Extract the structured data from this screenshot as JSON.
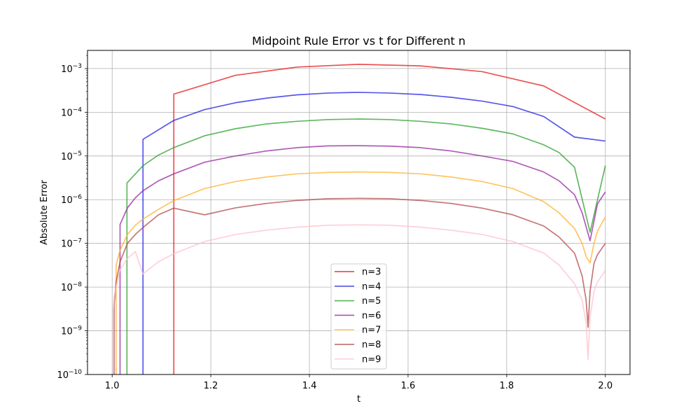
{
  "chart_data": {
    "type": "line",
    "title": "Midpoint Rule Error vs t for Different n",
    "xlabel": "t",
    "ylabel": "Absolute Error",
    "yscale": "log",
    "xlim": [
      0.95,
      2.05
    ],
    "ylim": [
      1e-10,
      0.0026
    ],
    "grid": true,
    "legend_location": "lower-center",
    "x_ticks": [
      {
        "value": 1.0,
        "label": "1.0"
      },
      {
        "value": 1.2,
        "label": "1.2"
      },
      {
        "value": 1.4,
        "label": "1.4"
      },
      {
        "value": 1.6,
        "label": "1.6"
      },
      {
        "value": 1.8,
        "label": "1.8"
      },
      {
        "value": 2.0,
        "label": "2.0"
      }
    ],
    "y_ticks": [
      {
        "value": 1e-10,
        "base": "10",
        "exp": "−10"
      },
      {
        "value": 1e-09,
        "base": "10",
        "exp": "−9"
      },
      {
        "value": 1e-08,
        "base": "10",
        "exp": "−8"
      },
      {
        "value": 1e-07,
        "base": "10",
        "exp": "−7"
      },
      {
        "value": 1e-06,
        "base": "10",
        "exp": "−6"
      },
      {
        "value": 1e-05,
        "base": "10",
        "exp": "−5"
      },
      {
        "value": 0.0001,
        "base": "10",
        "exp": "−4"
      },
      {
        "value": 0.001,
        "base": "10",
        "exp": "−3"
      }
    ],
    "series": [
      {
        "name": "n=3",
        "color": "#e41a1c",
        "x": [
          1.125,
          1.125,
          1.25,
          1.375,
          1.5,
          1.625,
          1.75,
          1.875,
          2.0
        ],
        "y": [
          1e-10,
          0.00026,
          0.0007,
          0.00108,
          0.00125,
          0.00115,
          0.00085,
          0.0004,
          7e-05
        ]
      },
      {
        "name": "n=4",
        "color": "#1f1fe6",
        "x": [
          1.0625,
          1.0625,
          1.125,
          1.1875,
          1.25,
          1.3125,
          1.375,
          1.4375,
          1.5,
          1.5625,
          1.625,
          1.6875,
          1.75,
          1.8125,
          1.875,
          1.9375,
          2.0
        ],
        "y": [
          1e-10,
          2.4e-05,
          6.5e-05,
          0.000115,
          0.000165,
          0.00021,
          0.00025,
          0.000275,
          0.000285,
          0.000275,
          0.000255,
          0.00022,
          0.00018,
          0.000135,
          8e-05,
          2.7e-05,
          2.2e-05
        ]
      },
      {
        "name": "n=5",
        "color": "#2ca02c",
        "x": [
          1.03,
          1.03,
          1.0625,
          1.094,
          1.125,
          1.1875,
          1.25,
          1.3125,
          1.375,
          1.4375,
          1.5,
          1.5625,
          1.625,
          1.6875,
          1.75,
          1.8125,
          1.875,
          1.906,
          1.9375,
          1.969,
          2.0
        ],
        "y": [
          1e-10,
          2.4e-06,
          6e-06,
          1.05e-05,
          1.55e-05,
          2.9e-05,
          4.2e-05,
          5.4e-05,
          6.2e-05,
          6.8e-05,
          7e-05,
          6.8e-05,
          6.2e-05,
          5.4e-05,
          4.3e-05,
          3.2e-05,
          1.8e-05,
          1.2e-05,
          5.5e-06,
          1.8e-07,
          6e-06
        ]
      },
      {
        "name": "n=6",
        "color": "#9525a0",
        "x": [
          1.016,
          1.016,
          1.031,
          1.047,
          1.0625,
          1.094,
          1.125,
          1.1875,
          1.25,
          1.3125,
          1.375,
          1.4375,
          1.5,
          1.5625,
          1.625,
          1.6875,
          1.75,
          1.8125,
          1.875,
          1.906,
          1.9375,
          1.953,
          1.969,
          1.984,
          2.0
        ],
        "y": [
          1e-10,
          2.7e-07,
          6.5e-07,
          1.1e-06,
          1.6e-06,
          2.7e-06,
          3.9e-06,
          7.2e-06,
          1e-05,
          1.3e-05,
          1.55e-05,
          1.7e-05,
          1.72e-05,
          1.68e-05,
          1.55e-05,
          1.3e-05,
          1e-05,
          7.5e-06,
          4.3e-06,
          2.7e-06,
          1.3e-06,
          5e-07,
          1.15e-07,
          8e-07,
          1.5e-06
        ]
      },
      {
        "name": "n=7",
        "color": "#ffb02e",
        "x": [
          1.008,
          1.008,
          1.016,
          1.031,
          1.047,
          1.0625,
          1.094,
          1.125,
          1.1875,
          1.25,
          1.3125,
          1.375,
          1.4375,
          1.5,
          1.5625,
          1.625,
          1.6875,
          1.75,
          1.8125,
          1.875,
          1.906,
          1.9375,
          1.953,
          1.961,
          1.969,
          1.977,
          1.984,
          2.0
        ],
        "y": [
          1e-10,
          3.2e-08,
          7e-08,
          1.6e-07,
          2.6e-07,
          3.6e-07,
          6e-07,
          9.5e-07,
          1.8e-06,
          2.6e-06,
          3.3e-06,
          3.9e-06,
          4.2e-06,
          4.3e-06,
          4.2e-06,
          3.9e-06,
          3.3e-06,
          2.6e-06,
          1.8e-06,
          9e-07,
          5e-07,
          2.2e-07,
          1e-07,
          5e-08,
          3.6e-08,
          1e-07,
          1.9e-07,
          4e-07
        ]
      },
      {
        "name": "n=8",
        "color": "#b34a4a",
        "x": [
          1.004,
          1.004,
          1.008,
          1.016,
          1.031,
          1.047,
          1.0625,
          1.094,
          1.125,
          1.1875,
          1.25,
          1.3125,
          1.375,
          1.4375,
          1.5,
          1.5625,
          1.625,
          1.6875,
          1.75,
          1.8125,
          1.875,
          1.906,
          1.9375,
          1.953,
          1.961,
          1.965,
          1.969,
          1.977,
          1.984,
          2.0
        ],
        "y": [
          1e-10,
          4e-09,
          1.3e-08,
          3.8e-08,
          1e-07,
          1.6e-07,
          2.3e-07,
          4.5e-07,
          6.4e-07,
          4.5e-07,
          6.5e-07,
          8.2e-07,
          9.6e-07,
          1.05e-06,
          1.07e-06,
          1.05e-06,
          9.6e-07,
          8.2e-07,
          6.4e-07,
          4.5e-07,
          2.5e-07,
          1.4e-07,
          6e-08,
          1.8e-08,
          5e-09,
          1.2e-09,
          8e-09,
          3.5e-08,
          5.5e-08,
          1e-07
        ]
      },
      {
        "name": "n=9",
        "color": "#ffc0cb",
        "x": [
          1.002,
          1.002,
          1.004,
          1.008,
          1.016,
          1.031,
          1.047,
          1.0625,
          1.094,
          1.125,
          1.1875,
          1.25,
          1.3125,
          1.375,
          1.4375,
          1.5,
          1.5625,
          1.625,
          1.6875,
          1.75,
          1.8125,
          1.875,
          1.906,
          1.9375,
          1.953,
          1.961,
          1.965,
          1.969,
          1.977,
          1.984,
          2.0
        ],
        "y": [
          1e-10,
          3e-09,
          6e-09,
          1e-08,
          2.5e-08,
          4.5e-08,
          6.5e-08,
          2e-08,
          3.8e-08,
          5.8e-08,
          1.1e-07,
          1.6e-07,
          2e-07,
          2.35e-07,
          2.6e-07,
          2.65e-07,
          2.6e-07,
          2.35e-07,
          2e-07,
          1.6e-07,
          1.1e-07,
          6e-08,
          3.2e-08,
          1.2e-08,
          5e-09,
          1.5e-09,
          2.2e-10,
          2e-09,
          8e-09,
          1.3e-08,
          2.4e-08
        ]
      }
    ]
  }
}
